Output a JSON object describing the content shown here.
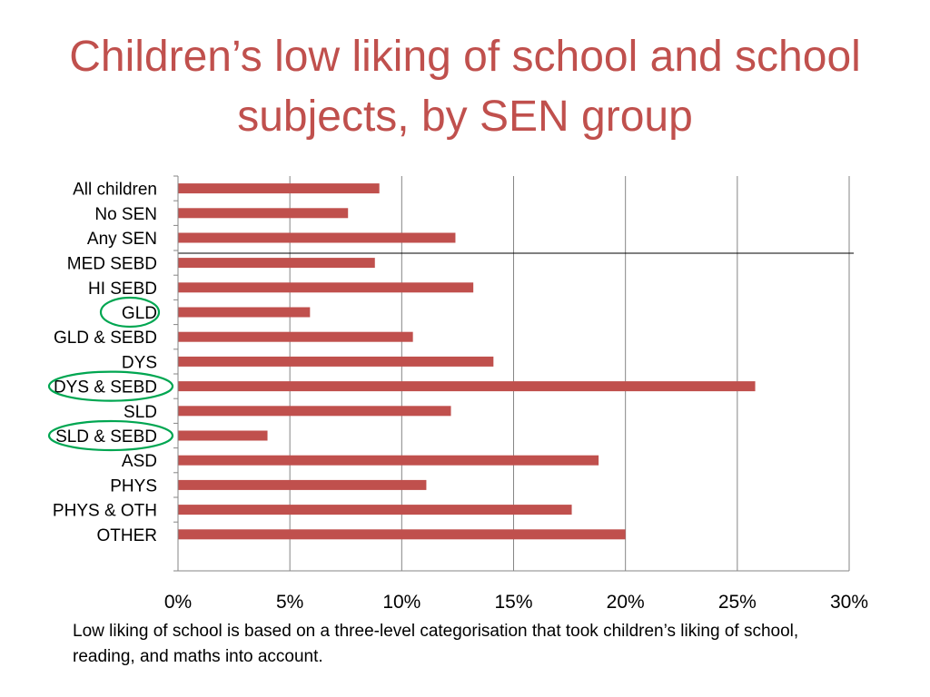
{
  "title": "Children’s low liking of school and school subjects, by SEN group",
  "footnote": "Low liking of school is based on a three-level categorisation that took children’s liking of school, reading, and maths into account.",
  "chart_data": {
    "type": "bar",
    "orientation": "horizontal",
    "title": "Children’s low liking of school and school subjects, by SEN group",
    "xlabel": "",
    "ylabel": "",
    "xlim": [
      0,
      0.3
    ],
    "x_ticks": [
      0,
      0.05,
      0.1,
      0.15,
      0.2,
      0.25,
      0.3
    ],
    "x_tick_labels": [
      "0%",
      "5%",
      "10%",
      "15%",
      "20%",
      "25%",
      "30%"
    ],
    "grid": "vertical",
    "groups": [
      {
        "categories": [
          "All children",
          "No SEN",
          "Any SEN"
        ],
        "values": [
          0.09,
          0.076,
          0.124
        ]
      },
      {
        "categories": [
          "MED SEBD",
          "HI SEBD",
          "GLD",
          "GLD & SEBD",
          "DYS",
          "DYS & SEBD",
          "SLD",
          "SLD & SEBD",
          "ASD",
          "PHYS",
          "PHYS & OTH",
          "OTHER"
        ],
        "values": [
          0.088,
          0.132,
          0.059,
          0.105,
          0.141,
          0.258,
          0.122,
          0.04,
          0.188,
          0.111,
          0.176,
          0.2
        ]
      }
    ],
    "circled_categories": [
      "GLD",
      "DYS & SEBD",
      "SLD & SEBD"
    ],
    "colors": {
      "bar": "#c0504d",
      "circle": "#00a651",
      "grid": "#868686",
      "title": "#c0504d"
    }
  }
}
